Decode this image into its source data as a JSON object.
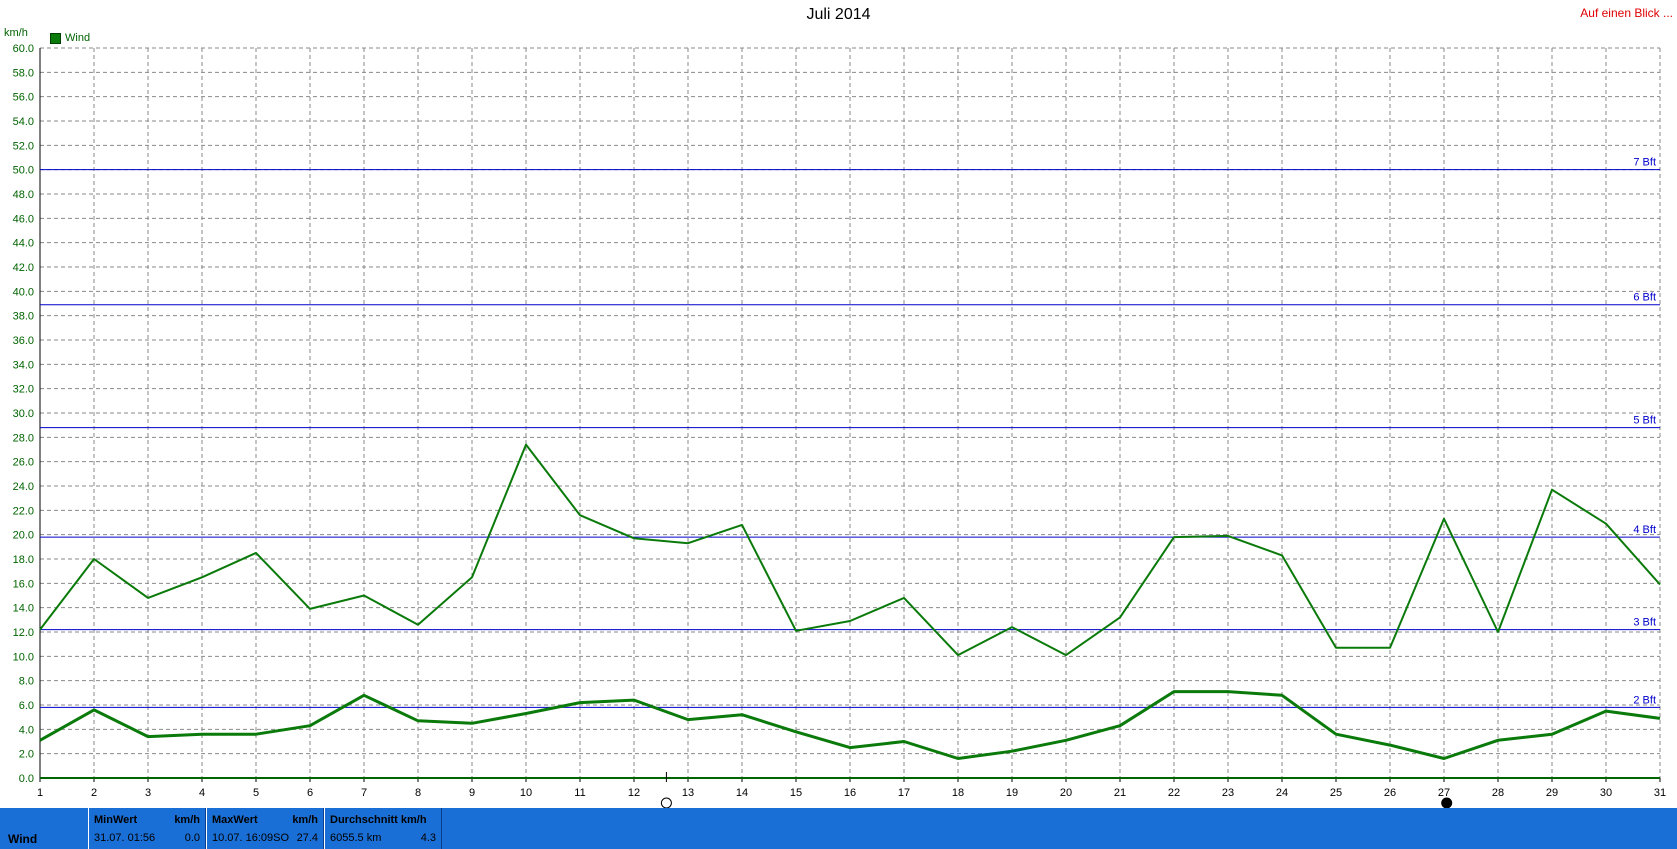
{
  "title": "Juli 2014",
  "overview_link": "Auf einen Blick ...",
  "unit": "km/h",
  "legend_label": "Wind",
  "colors": {
    "series": "#0a7a0a",
    "beaufort": "#0000cc",
    "grid": "#8a8a8a",
    "bar": "#1a6fd6"
  },
  "chart_data": {
    "type": "line",
    "x": [
      1,
      2,
      3,
      4,
      5,
      6,
      7,
      8,
      9,
      10,
      11,
      12,
      13,
      14,
      15,
      16,
      17,
      18,
      19,
      20,
      21,
      22,
      23,
      24,
      25,
      26,
      27,
      28,
      29,
      30,
      31
    ],
    "xlim": [
      1,
      31
    ],
    "ylim": [
      0,
      60
    ],
    "ytick_step": 2,
    "ylabel": "km/h",
    "series": [
      {
        "name": "Wind",
        "values": [
          12.2,
          18.0,
          14.8,
          16.5,
          18.5,
          13.9,
          15.0,
          12.6,
          16.5,
          27.4,
          21.6,
          19.7,
          19.3,
          20.8,
          12.1,
          12.9,
          14.8,
          10.1,
          12.4,
          10.1,
          13.2,
          19.8,
          19.9,
          18.3,
          10.7,
          10.7,
          21.3,
          12.0,
          23.7,
          20.9,
          15.9
        ]
      },
      {
        "values": [
          3.1,
          5.6,
          3.4,
          3.6,
          3.6,
          4.3,
          6.8,
          4.7,
          4.5,
          5.3,
          6.2,
          6.4,
          4.8,
          5.2,
          3.8,
          2.5,
          3.0,
          1.6,
          2.2,
          3.1,
          4.3,
          7.1,
          7.1,
          6.8,
          3.6,
          2.7,
          1.6,
          3.1,
          3.6,
          5.5,
          4.9
        ]
      }
    ],
    "reference_lines": [
      {
        "label": "2 Bft",
        "value": 5.8
      },
      {
        "label": "3 Bft",
        "value": 12.2
      },
      {
        "label": "4 Bft",
        "value": 19.8
      },
      {
        "label": "5 Bft",
        "value": 28.8
      },
      {
        "label": "6 Bft",
        "value": 38.9
      },
      {
        "label": "7 Bft",
        "value": 50.0
      }
    ],
    "grid": true,
    "legend_position": "top-left"
  },
  "stats_bar": {
    "series_label": "Wind",
    "min": {
      "head": "MinWert",
      "unit": "km/h",
      "time": "31.07.  01:56",
      "value": "0.0"
    },
    "max": {
      "head": "MaxWert",
      "unit": "km/h",
      "time": "10.07.  16:09",
      "dir": "SO",
      "value": "27.4"
    },
    "avg": {
      "head": "Durchschnitt km/h",
      "distance": "6055.5 km",
      "value": "4.3"
    }
  }
}
